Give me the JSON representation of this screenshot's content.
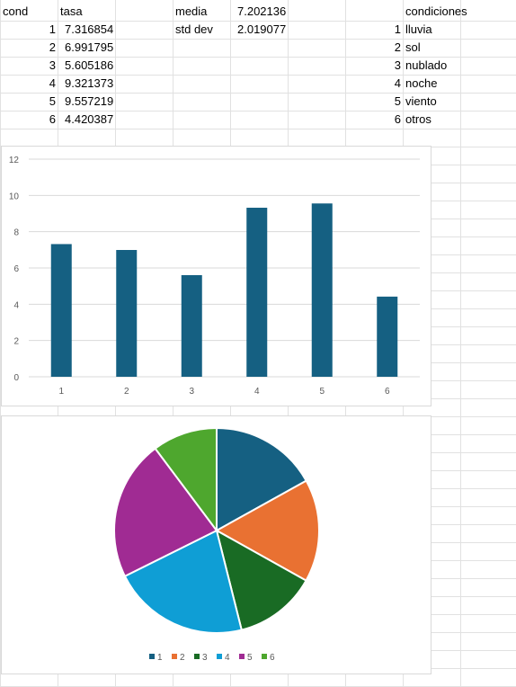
{
  "sheet": {
    "headers": {
      "cond": "cond",
      "tasa": "tasa",
      "media_label": "media",
      "media_value": "7.202136",
      "std_label": "std dev",
      "std_value": "2.019077",
      "condiciones": "condiciones"
    },
    "rows": [
      {
        "cond": "1",
        "tasa": "7.316854",
        "cid": "1",
        "cname": "lluvia"
      },
      {
        "cond": "2",
        "tasa": "6.991795",
        "cid": "2",
        "cname": "sol"
      },
      {
        "cond": "3",
        "tasa": "5.605186",
        "cid": "3",
        "cname": "nublado"
      },
      {
        "cond": "4",
        "tasa": "9.321373",
        "cid": "4",
        "cname": "noche"
      },
      {
        "cond": "5",
        "tasa": "9.557219",
        "cid": "5",
        "cname": "viento"
      },
      {
        "cond": "6",
        "tasa": "4.420387",
        "cid": "6",
        "cname": "otros"
      }
    ]
  },
  "chart_data": [
    {
      "type": "bar",
      "categories": [
        "1",
        "2",
        "3",
        "4",
        "5",
        "6"
      ],
      "values": [
        7.316854,
        6.991795,
        5.605186,
        9.321373,
        9.557219,
        4.420387
      ],
      "ylim": [
        0,
        12
      ],
      "yticks": [
        "0",
        "2",
        "4",
        "6",
        "8",
        "10",
        "12"
      ],
      "grid": true,
      "color": "#156082"
    },
    {
      "type": "pie",
      "categories": [
        "1",
        "2",
        "3",
        "4",
        "5",
        "6"
      ],
      "values": [
        7.316854,
        6.991795,
        5.605186,
        9.321373,
        9.557219,
        4.420387
      ],
      "colors": [
        "#156082",
        "#E97132",
        "#196B24",
        "#0F9ED5",
        "#A02B93",
        "#4EA72E"
      ],
      "legend": "bottom"
    }
  ]
}
